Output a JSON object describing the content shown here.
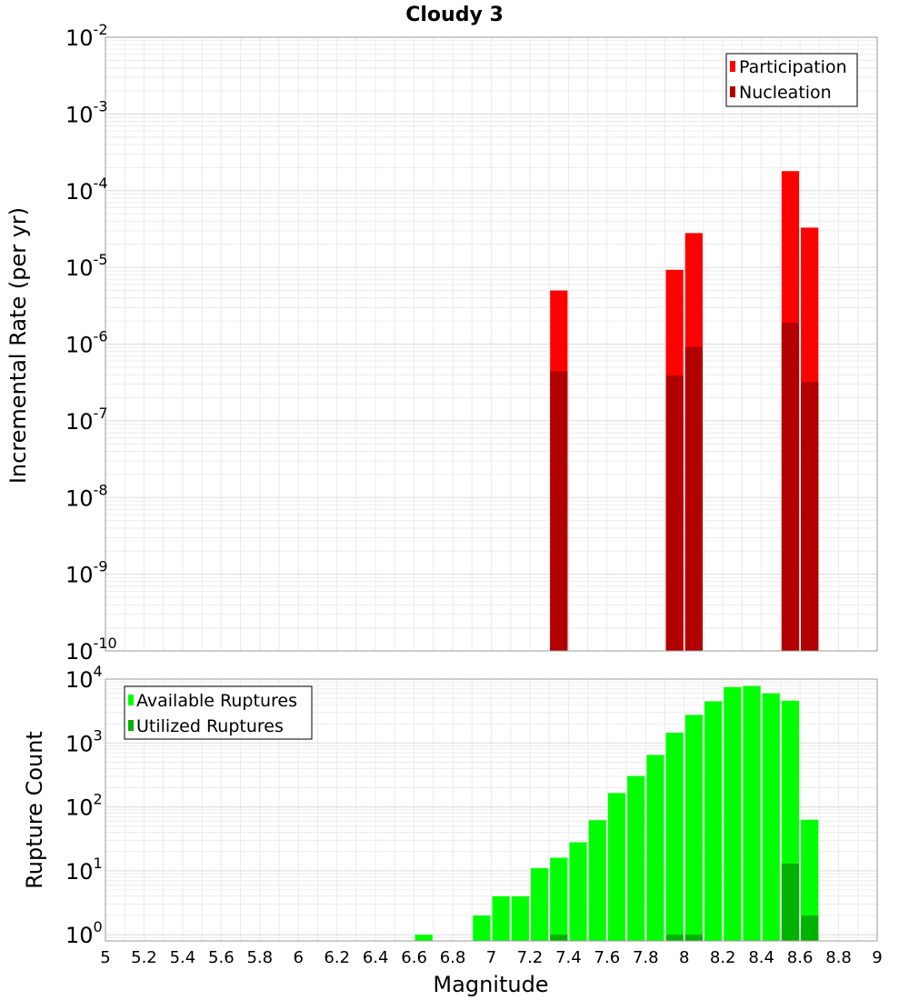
{
  "chart_data": [
    {
      "type": "bar",
      "title": "Cloudy 3",
      "xlabel": "",
      "ylabel": "Incremental Rate (per yr)",
      "yscale": "log",
      "ylim": [
        1e-10,
        0.01
      ],
      "y_ticks": [
        {
          "base": "10",
          "exp": "-2"
        },
        {
          "base": "10",
          "exp": "-3"
        },
        {
          "base": "10",
          "exp": "-4"
        },
        {
          "base": "10",
          "exp": "-5"
        },
        {
          "base": "10",
          "exp": "-6"
        },
        {
          "base": "10",
          "exp": "-7"
        },
        {
          "base": "10",
          "exp": "-8"
        },
        {
          "base": "10",
          "exp": "-9"
        },
        {
          "base": "10",
          "exp": "-10"
        }
      ],
      "xlim": [
        5,
        9
      ],
      "bin_width": 0.1,
      "grid": true,
      "legend_position": "top-right",
      "series": [
        {
          "name": "Participation",
          "color": "#ff0000",
          "x": [
            7.35,
            7.95,
            8.05,
            8.55,
            8.65
          ],
          "values": [
            5e-06,
            9.3e-06,
            2.8e-05,
            0.00018,
            3.3e-05
          ]
        },
        {
          "name": "Nucleation",
          "color": "#b20000",
          "x": [
            7.35,
            7.95,
            8.05,
            8.55,
            8.65
          ],
          "values": [
            4.4e-07,
            3.9e-07,
            9.2e-07,
            1.9e-06,
            3.2e-07
          ]
        }
      ]
    },
    {
      "type": "bar",
      "title": "",
      "xlabel": "Magnitude",
      "ylabel": "Rupture Count",
      "yscale": "log",
      "ylim": [
        0.8,
        10000
      ],
      "y_ticks": [
        {
          "base": "10",
          "exp": "4"
        },
        {
          "base": "10",
          "exp": "3"
        },
        {
          "base": "10",
          "exp": "2"
        },
        {
          "base": "10",
          "exp": "1"
        },
        {
          "base": "10",
          "exp": "0"
        }
      ],
      "xlim": [
        5,
        9
      ],
      "x_ticks": [
        "5",
        "5.2",
        "5.4",
        "5.6",
        "5.8",
        "6",
        "6.2",
        "6.4",
        "6.6",
        "6.8",
        "7",
        "7.2",
        "7.4",
        "7.6",
        "7.8",
        "8",
        "8.2",
        "8.4",
        "8.6",
        "8.8",
        "9"
      ],
      "bin_width": 0.1,
      "grid": true,
      "legend_position": "top-left",
      "series": [
        {
          "name": "Available Ruptures",
          "color": "#00ff00",
          "x": [
            6.65,
            6.95,
            7.05,
            7.15,
            7.25,
            7.35,
            7.45,
            7.55,
            7.65,
            7.75,
            7.85,
            7.95,
            8.05,
            8.15,
            8.25,
            8.35,
            8.45,
            8.55,
            8.65
          ],
          "values": [
            1,
            2,
            4,
            4,
            11,
            16,
            28,
            62,
            165,
            305,
            650,
            1450,
            2750,
            4500,
            7500,
            7800,
            6000,
            4600,
            63
          ]
        },
        {
          "name": "Utilized Ruptures",
          "color": "#00b200",
          "x": [
            7.35,
            7.95,
            8.05,
            8.55,
            8.65
          ],
          "values": [
            1,
            1,
            1,
            13,
            2
          ]
        }
      ]
    }
  ]
}
